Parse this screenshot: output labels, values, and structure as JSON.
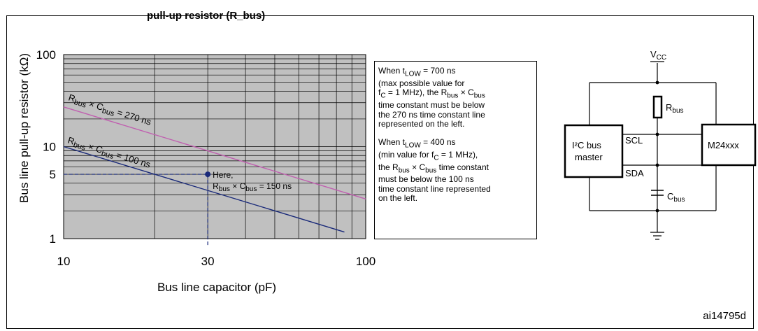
{
  "header": {
    "title_fragment": "pull-up resistor (R_bus)"
  },
  "chart_data": {
    "type": "line",
    "xscale": "log",
    "yscale": "log",
    "xlabel": "Bus line capacitor (pF)",
    "ylabel": "Bus line pull-up resistor (kΩ)",
    "xlim": [
      10,
      100
    ],
    "ylim": [
      1,
      100
    ],
    "x_tick_labels": [
      "10",
      "30",
      "100"
    ],
    "y_tick_labels": [
      "1",
      "5",
      "10",
      "100"
    ],
    "grid": true,
    "series": [
      {
        "name": "Rbus × Cbus = 270 ns",
        "color": "#c060b0",
        "x": [
          10,
          100
        ],
        "y": [
          27,
          2.7
        ]
      },
      {
        "name": "Rbus × Cbus = 100 ns",
        "color": "#1a2a7a",
        "x": [
          10,
          85
        ],
        "y": [
          10,
          1.18
        ]
      }
    ],
    "annotation": {
      "text": "Here, Rbus × Cbus = 150 ns",
      "x": 30,
      "y": 5
    }
  },
  "labels": {
    "line270": {
      "pre": "R",
      "s1": "bus",
      "mid": " × C",
      "s2": "bus",
      "post": " = 270 ns"
    },
    "line100": {
      "pre": "R",
      "s1": "bus",
      "mid": " × C",
      "s2": "bus",
      "post": " = 100 ns"
    },
    "here1": "Here,",
    "here2": {
      "pre": "R",
      "s1": "bus",
      "mid": " × C",
      "s2": "bus",
      "post": " = 150 ns"
    }
  },
  "note": {
    "p1": {
      "a": "When t",
      "a_sub": "LOW",
      "b": " = 700 ns",
      "c": "(max possible value for",
      "d": "f",
      "d_sub": "C",
      "e": " = 1 MHz), the R",
      "e_sub": "bus",
      "f": " × C",
      "f_sub": "bus",
      "g": "time constant must be below",
      "h": "the 270 ns time constant line",
      "i": "represented on the left."
    },
    "p2": {
      "a": "When t",
      "a_sub": "LOW",
      "b": " = 400 ns",
      "c": "(min value for f",
      "c_sub": "C",
      "c2": " = 1 MHz),",
      "d": "the R",
      "d_sub": "bus",
      "e": " × C",
      "e_sub": "bus",
      "f": " time constant",
      "g": "must be below the 100 ns",
      "h": "time constant line represented",
      "i": "on the left."
    }
  },
  "circuit": {
    "vcc": "V",
    "vcc_sub": "CC",
    "rbus": "R",
    "rbus_sub": "bus",
    "cbus": "C",
    "cbus_sub": "bus",
    "master_line1": "I²C bus",
    "master_line2": "master",
    "scl": "SCL",
    "sda": "SDA",
    "slave": "M24xxx"
  },
  "figure_ref": "ai14795d"
}
